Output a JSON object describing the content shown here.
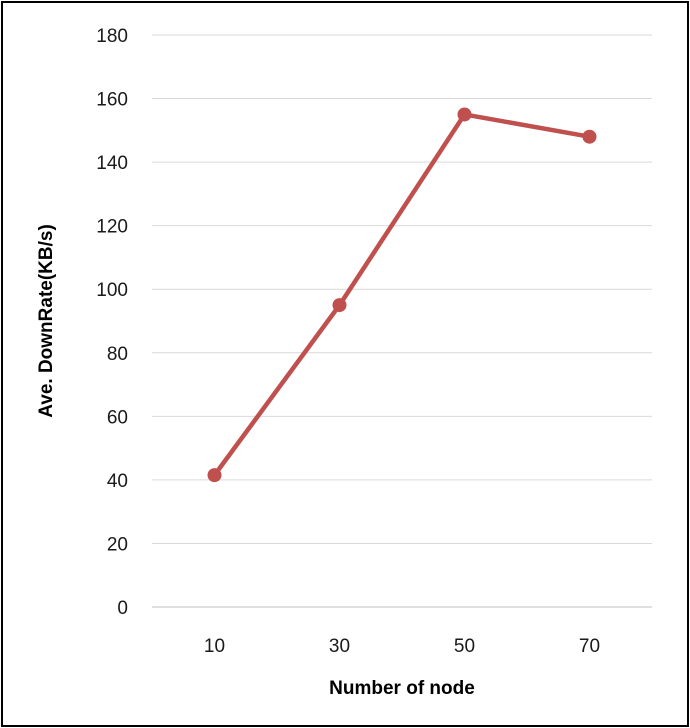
{
  "chart_data": {
    "type": "line",
    "title": "",
    "xlabel": "Number of node",
    "ylabel": "Ave. DownRate(KB/s)",
    "categories": [
      "10",
      "30",
      "50",
      "70"
    ],
    "series": [
      {
        "name": "",
        "values": [
          41.5,
          95,
          155,
          148
        ],
        "color": "#c0504d"
      }
    ],
    "ylim": [
      0,
      180
    ],
    "yticks": [
      0,
      20,
      40,
      60,
      80,
      100,
      120,
      140,
      160,
      180
    ],
    "grid": true,
    "legend": "none",
    "gridColor": "#d9d9d9",
    "axisColor": "#bfbfbf"
  }
}
